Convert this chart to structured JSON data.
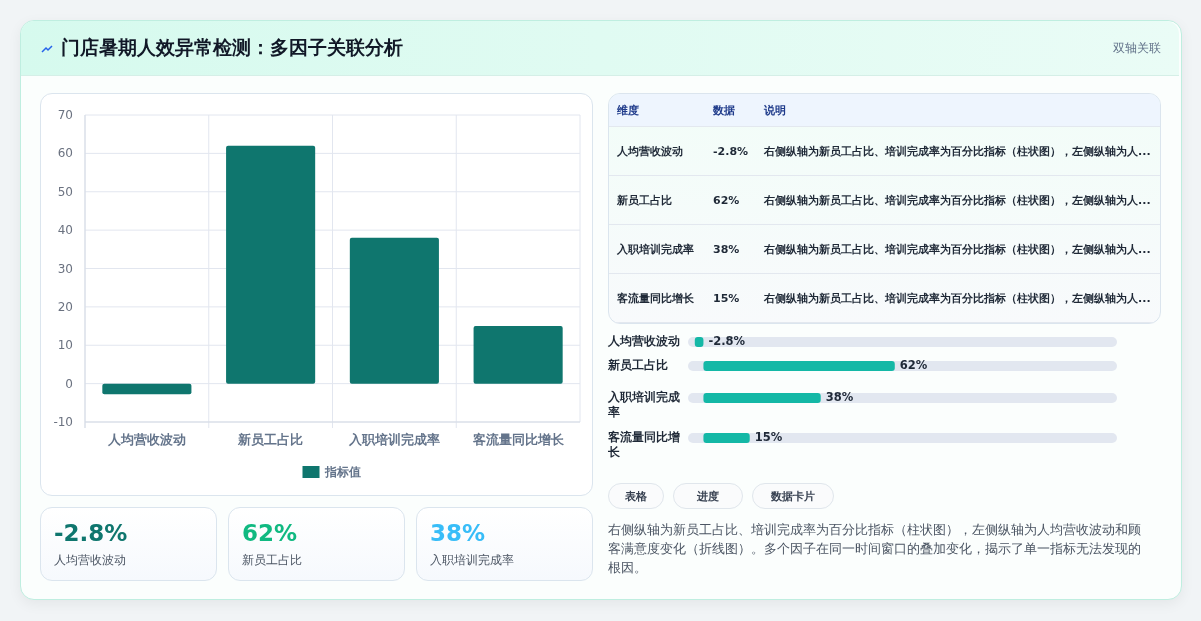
{
  "chart_data": [
    {
      "type": "other",
      "title": "门店暑期人效异常检测：多因子关联分析",
      "subtitle": "双轴关联"
    },
    {
      "type": "bar",
      "categories": [
        "人均营收波动",
        "新员工占比",
        "入职培训完成率",
        "客流量同比增长"
      ],
      "series": [
        {
          "name": "指标值",
          "color": "#0f766e",
          "values": [
            -2.8,
            62,
            38,
            15
          ]
        }
      ],
      "ylim": [
        -10,
        70
      ],
      "yticks": [
        -10,
        0,
        10,
        20,
        30,
        40,
        50,
        60,
        70
      ],
      "grid": true,
      "legend": "bottom"
    },
    {
      "type": "other",
      "categories": [
        "人均营收波动",
        "新员工占比",
        "入职培训完成率",
        "客流量同比增长"
      ],
      "value_labels": [
        "-2.8%",
        "62%",
        "38%",
        "15%"
      ],
      "annotations": [
        "维度",
        "数据",
        "说明",
        "右侧纵轴为新员工占比、培训完成率为百分比指标（柱状图），左侧纵轴为人...",
        "右侧纵轴为新员工占比、培训完成率为百分比指标（柱状图），左侧纵轴为人...",
        "右侧纵轴为新员工占比、培训完成率为百分比指标（柱状图），左侧纵轴为人...",
        "右侧纵轴为新员工占比、培训完成率为百分比指标（柱状图），左侧纵轴为人..."
      ]
    },
    {
      "type": "bar",
      "orientation": "horizontal",
      "categories": [
        "人均营收波动",
        "新员工占比",
        "入职培训完成率",
        "客流量同比增长"
      ],
      "values": [
        -2.8,
        62,
        38,
        15
      ],
      "value_labels": [
        "-2.8%",
        "62%",
        "38%",
        "15%"
      ],
      "color": "#14b8a6",
      "xlim": [
        -5,
        134
      ]
    },
    {
      "type": "other",
      "categories": [
        "人均营收波动",
        "新员工占比",
        "入职培训完成率"
      ],
      "value_labels": [
        "-2.8%",
        "62%",
        "38%"
      ]
    },
    {
      "type": "other",
      "annotations": [
        "表格",
        "进度",
        "数据卡片",
        "右侧纵轴为新员工占比、培训完成率为百分比指标（柱状图），左侧纵轴为人均营收波动和顾客满意度变化（折线图）。多个因子在同一时间窗口的叠加变化，揭示了单一指标无法发现的根因。"
      ]
    }
  ]
}
